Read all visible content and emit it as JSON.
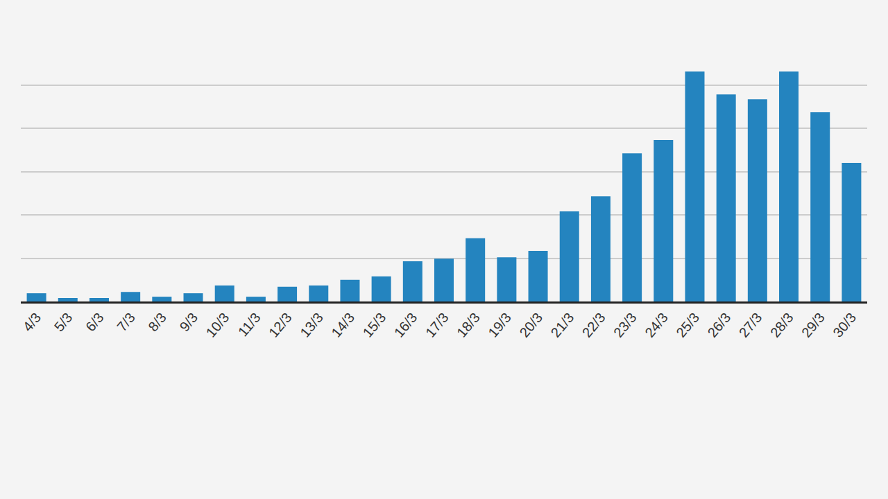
{
  "chart_data": {
    "type": "bar",
    "categories": [
      "4/3",
      "5/3",
      "6/3",
      "7/3",
      "8/3",
      "9/3",
      "10/3",
      "11/3",
      "12/3",
      "13/3",
      "14/3",
      "15/3",
      "16/3",
      "17/3",
      "18/3",
      "19/3",
      "20/3",
      "21/3",
      "22/3",
      "23/3",
      "24/3",
      "25/3",
      "26/3",
      "27/3",
      "28/3",
      "29/3",
      "30/3"
    ],
    "values": [
      19,
      8,
      8,
      22,
      11,
      19,
      37,
      11,
      34,
      37,
      50,
      58,
      93,
      99,
      146,
      102,
      117,
      208,
      243,
      342,
      373,
      531,
      478,
      467,
      531,
      437,
      320
    ],
    "color": "#2484bf",
    "ylim": [
      0,
      600
    ],
    "yticks": [
      0,
      100,
      200,
      300,
      400,
      500,
      600
    ],
    "grid": true,
    "tick_labels": "x"
  }
}
